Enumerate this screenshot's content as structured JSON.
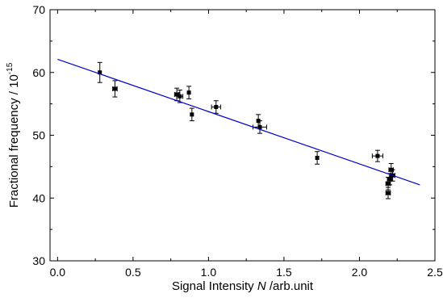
{
  "chart_data": {
    "type": "scatter",
    "xlabel_prefix": "Signal Intensity ",
    "xlabel_var": "N",
    "xlabel_suffix": " /arb.unit",
    "ylabel_base": "Fractional frequency / 10",
    "ylabel_exp": "-15",
    "xlim": [
      -0.05,
      2.5
    ],
    "ylim": [
      30,
      70
    ],
    "xticks": [
      0.0,
      0.5,
      1.0,
      1.5,
      2.0,
      2.5
    ],
    "xtick_labels": [
      "0.0",
      "0.5",
      "1.0",
      "1.5",
      "2.0",
      "2.5"
    ],
    "yticks": [
      30,
      40,
      50,
      60,
      70
    ],
    "ytick_labels": [
      "30",
      "40",
      "50",
      "60",
      "70"
    ],
    "grid": false,
    "series": [
      {
        "kind": "points-with-errorbars",
        "color": "#000000",
        "points": [
          {
            "x": 0.28,
            "y": 60.0,
            "yerr": 1.6,
            "xerr": 0.0
          },
          {
            "x": 0.38,
            "y": 57.4,
            "yerr": 1.3,
            "xerr": 0.015
          },
          {
            "x": 0.79,
            "y": 56.5,
            "yerr": 1.0,
            "xerr": 0.015
          },
          {
            "x": 0.81,
            "y": 56.2,
            "yerr": 1.0,
            "xerr": 0.02
          },
          {
            "x": 0.87,
            "y": 56.8,
            "yerr": 1.0,
            "xerr": 0.0
          },
          {
            "x": 0.89,
            "y": 53.3,
            "yerr": 1.0,
            "xerr": 0.0
          },
          {
            "x": 1.05,
            "y": 54.5,
            "yerr": 1.0,
            "xerr": 0.03
          },
          {
            "x": 1.33,
            "y": 52.3,
            "yerr": 1.0,
            "xerr": 0.0
          },
          {
            "x": 1.34,
            "y": 51.3,
            "yerr": 1.0,
            "xerr": 0.045
          },
          {
            "x": 1.72,
            "y": 46.4,
            "yerr": 1.0,
            "xerr": 0.0
          },
          {
            "x": 2.12,
            "y": 46.7,
            "yerr": 0.9,
            "xerr": 0.035
          },
          {
            "x": 2.19,
            "y": 42.3,
            "yerr": 1.0,
            "xerr": 0.015
          },
          {
            "x": 2.19,
            "y": 40.8,
            "yerr": 0.9,
            "xerr": 0.015
          },
          {
            "x": 2.2,
            "y": 43.0,
            "yerr": 0.9,
            "xerr": 0.015
          },
          {
            "x": 2.21,
            "y": 44.5,
            "yerr": 1.0,
            "xerr": 0.015
          },
          {
            "x": 2.22,
            "y": 43.6,
            "yerr": 0.9,
            "xerr": 0.015
          }
        ]
      },
      {
        "kind": "fit-line",
        "color": "#0000cc",
        "x": [
          0.0,
          2.4
        ],
        "y": [
          62.1,
          42.1
        ]
      }
    ]
  }
}
